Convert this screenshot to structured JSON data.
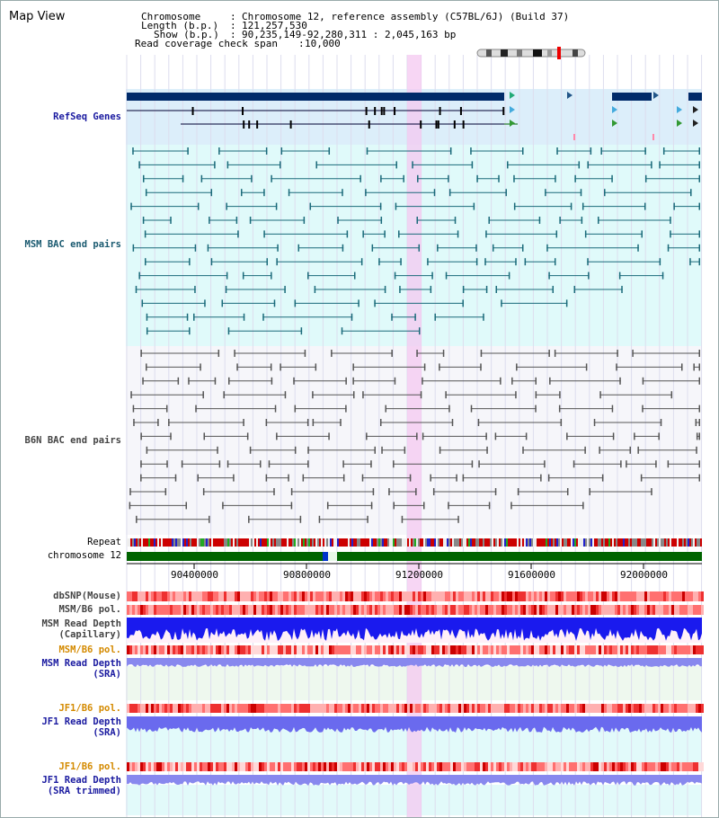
{
  "header": {
    "title": "Map View"
  },
  "info": {
    "chromosome_key": "Chromosome",
    "chromosome_val": "Chromosome 12, reference assembly (C57BL/6J) (Build 37)",
    "length_key": "Length (b.p.)",
    "length_val": "121,257,530",
    "show_key": "Show (b.p.)",
    "show_val": "90,235,149-92,280,311 : 2,045,163 bp",
    "span_key": "Read coverage check span",
    "span_val": "10,000"
  },
  "tracks": {
    "refseq": "RefSeq Genes",
    "msm_bac": "MSM BAC end pairs",
    "b6n_bac": "B6N BAC end pairs",
    "repeat": "Repeat",
    "chromosome": "chromosome 12",
    "dbsnp": "dbSNP(Mouse)",
    "msm_b6_pol_1": "MSM/B6 pol.",
    "msm_depth_cap_1": "MSM Read Depth",
    "msm_depth_cap_2": "(Capillary)",
    "msm_b6_pol_2": "MSM/B6 pol.",
    "msm_depth_sra_1": "MSM Read Depth",
    "msm_depth_sra_2": "(SRA)",
    "jf1_b6_pol_1": "JF1/B6 pol.",
    "jf1_depth_sra_1": "JF1 Read Depth",
    "jf1_depth_sra_2": "(SRA)",
    "jf1_b6_pol_2": "JF1/B6 pol.",
    "jf1_depth_trim_1": "JF1 Read Depth",
    "jf1_depth_trim_2": "(SRA trimmed)"
  },
  "axis": {
    "ticks": [
      "90400000",
      "90800000",
      "91200000",
      "91600000",
      "92000000"
    ]
  },
  "colors": {
    "refseq_bg": "#dceefa",
    "msm_bg": "#e0fafa",
    "b6n_bg": "#f6f6fa",
    "depth_blue": "#1a1aee",
    "snp_red": "#ee2222",
    "chrom_green": "#006400",
    "highlight": "#f4c8f0"
  }
}
